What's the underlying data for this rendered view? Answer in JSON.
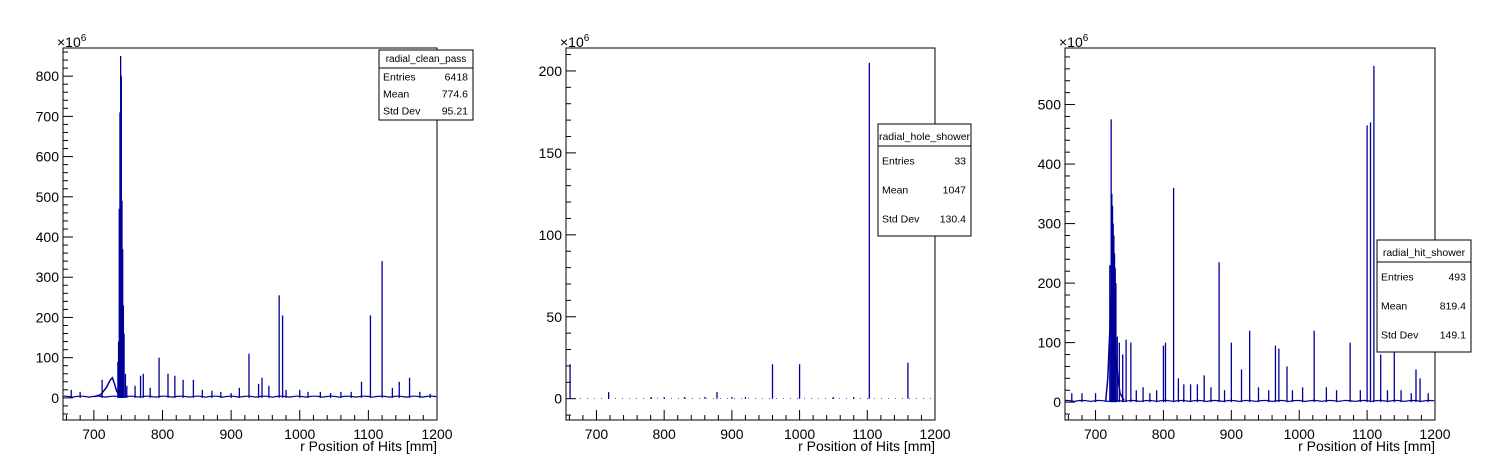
{
  "chart_data": [
    {
      "type": "histogram",
      "name": "radial_clean_pass",
      "xlabel": "r Position of Hits [mm]",
      "ylabel": "",
      "exponent_label": "×10",
      "exponent_power": "6",
      "xlim": [
        655,
        1200
      ],
      "ylim": [
        -55,
        870
      ],
      "xticks": [
        700,
        800,
        900,
        1000,
        1100,
        1200
      ],
      "yticks": [
        0,
        100,
        200,
        300,
        400,
        500,
        600,
        700,
        800
      ],
      "stats": {
        "title": "radial_clean_pass",
        "rows": [
          [
            "Entries",
            "6418"
          ],
          [
            "Mean",
            "774.6"
          ],
          [
            "Std Dev",
            "95.21"
          ]
        ]
      },
      "baseline": 3,
      "bump": [
        [
          700,
          3
        ],
        [
          710,
          8
        ],
        [
          718,
          25
        ],
        [
          724,
          45
        ],
        [
          727,
          50
        ],
        [
          730,
          35
        ],
        [
          733,
          18
        ],
        [
          736,
          8
        ],
        [
          742,
          4
        ]
      ],
      "spikes": [
        [
          737,
          470
        ],
        [
          738,
          710
        ],
        [
          739,
          850
        ],
        [
          740,
          800
        ],
        [
          741,
          490
        ],
        [
          742,
          370
        ],
        [
          743,
          230
        ],
        [
          744,
          160
        ],
        [
          736,
          140
        ],
        [
          735,
          90
        ],
        [
          746,
          60
        ],
        [
          748,
          30
        ],
        [
          760,
          30
        ],
        [
          768,
          55
        ],
        [
          772,
          60
        ],
        [
          782,
          25
        ],
        [
          795,
          100
        ],
        [
          808,
          60
        ],
        [
          818,
          55
        ],
        [
          830,
          45
        ],
        [
          845,
          45
        ],
        [
          858,
          20
        ],
        [
          872,
          18
        ],
        [
          885,
          15
        ],
        [
          900,
          12
        ],
        [
          912,
          25
        ],
        [
          926,
          110
        ],
        [
          940,
          35
        ],
        [
          945,
          50
        ],
        [
          955,
          30
        ],
        [
          970,
          255
        ],
        [
          975,
          205
        ],
        [
          980,
          20
        ],
        [
          1000,
          20
        ],
        [
          1012,
          15
        ],
        [
          1030,
          15
        ],
        [
          1045,
          12
        ],
        [
          1060,
          15
        ],
        [
          1075,
          15
        ],
        [
          1090,
          40
        ],
        [
          1103,
          205
        ],
        [
          1120,
          340
        ],
        [
          1135,
          25
        ],
        [
          1145,
          40
        ],
        [
          1160,
          50
        ],
        [
          1175,
          15
        ],
        [
          1190,
          10
        ],
        [
          667,
          20
        ],
        [
          680,
          15
        ],
        [
          712,
          45
        ]
      ],
      "stat_box_position": "top-right"
    },
    {
      "type": "histogram",
      "name": "radial_hole_shower",
      "xlabel": "r Position of Hits [mm]",
      "ylabel": "",
      "exponent_label": "×10",
      "exponent_power": "6",
      "xlim": [
        655,
        1200
      ],
      "ylim": [
        -13,
        214
      ],
      "xticks": [
        700,
        800,
        900,
        1000,
        1100,
        1200
      ],
      "yticks": [
        0,
        50,
        100,
        150,
        200
      ],
      "stats": {
        "title": "radial_hole_shower",
        "rows": [
          [
            "Entries",
            "33"
          ],
          [
            "Mean",
            "1047"
          ],
          [
            "Std Dev",
            "130.4"
          ]
        ]
      },
      "baseline": 0,
      "bump": [],
      "spikes": [
        [
          661,
          21
        ],
        [
          718,
          4
        ],
        [
          878,
          4
        ],
        [
          960,
          21
        ],
        [
          1000,
          21
        ],
        [
          1103,
          205
        ],
        [
          1160,
          22
        ],
        [
          781,
          1
        ],
        [
          800,
          1
        ],
        [
          830,
          1
        ],
        [
          860,
          1
        ],
        [
          900,
          1
        ],
        [
          920,
          1
        ],
        [
          1050,
          1
        ],
        [
          1080,
          1
        ]
      ],
      "stat_box_position": "middle-right"
    },
    {
      "type": "histogram",
      "name": "radial_hit_shower",
      "xlabel": "r Position of Hits [mm]",
      "ylabel": "",
      "exponent_label": "×10",
      "exponent_power": "6",
      "xlim": [
        655,
        1200
      ],
      "ylim": [
        -30,
        595
      ],
      "xticks": [
        700,
        800,
        900,
        1000,
        1100,
        1200
      ],
      "yticks": [
        0,
        100,
        200,
        300,
        400,
        500
      ],
      "stats": {
        "title": "radial_hit_shower",
        "rows": [
          [
            "Entries",
            "493"
          ],
          [
            "Mean",
            "819.4"
          ],
          [
            "Std Dev",
            "149.1"
          ]
        ]
      },
      "baseline": 2,
      "bump": [
        [
          715,
          2
        ],
        [
          718,
          40
        ],
        [
          721,
          120
        ],
        [
          724,
          200
        ],
        [
          727,
          150
        ],
        [
          730,
          80
        ],
        [
          733,
          40
        ],
        [
          736,
          15
        ],
        [
          742,
          3
        ]
      ],
      "spikes": [
        [
          721,
          230
        ],
        [
          723,
          475
        ],
        [
          724,
          350
        ],
        [
          725,
          330
        ],
        [
          726,
          300
        ],
        [
          727,
          280
        ],
        [
          728,
          250
        ],
        [
          729,
          225
        ],
        [
          730,
          200
        ],
        [
          732,
          110
        ],
        [
          735,
          100
        ],
        [
          740,
          80
        ],
        [
          745,
          105
        ],
        [
          752,
          100
        ],
        [
          760,
          20
        ],
        [
          770,
          25
        ],
        [
          780,
          15
        ],
        [
          790,
          20
        ],
        [
          800,
          95
        ],
        [
          803,
          100
        ],
        [
          815,
          360
        ],
        [
          822,
          40
        ],
        [
          830,
          30
        ],
        [
          840,
          30
        ],
        [
          850,
          30
        ],
        [
          860,
          45
        ],
        [
          870,
          25
        ],
        [
          882,
          235
        ],
        [
          890,
          20
        ],
        [
          900,
          100
        ],
        [
          915,
          55
        ],
        [
          927,
          120
        ],
        [
          940,
          25
        ],
        [
          955,
          20
        ],
        [
          965,
          95
        ],
        [
          970,
          90
        ],
        [
          982,
          60
        ],
        [
          990,
          20
        ],
        [
          1005,
          25
        ],
        [
          1022,
          120
        ],
        [
          1040,
          25
        ],
        [
          1055,
          20
        ],
        [
          1075,
          100
        ],
        [
          1090,
          20
        ],
        [
          1100,
          465
        ],
        [
          1105,
          470
        ],
        [
          1110,
          565
        ],
        [
          1120,
          80
        ],
        [
          1130,
          20
        ],
        [
          1140,
          100
        ],
        [
          1150,
          20
        ],
        [
          1165,
          15
        ],
        [
          1172,
          55
        ],
        [
          1178,
          40
        ],
        [
          1190,
          15
        ],
        [
          665,
          15
        ],
        [
          680,
          15
        ],
        [
          700,
          15
        ]
      ],
      "stat_box_position": "middle-right"
    }
  ],
  "colors": {
    "bars": "#000099",
    "frame": "#000000",
    "background": "#ffffff",
    "teal_markers": "#2e8b8b"
  }
}
